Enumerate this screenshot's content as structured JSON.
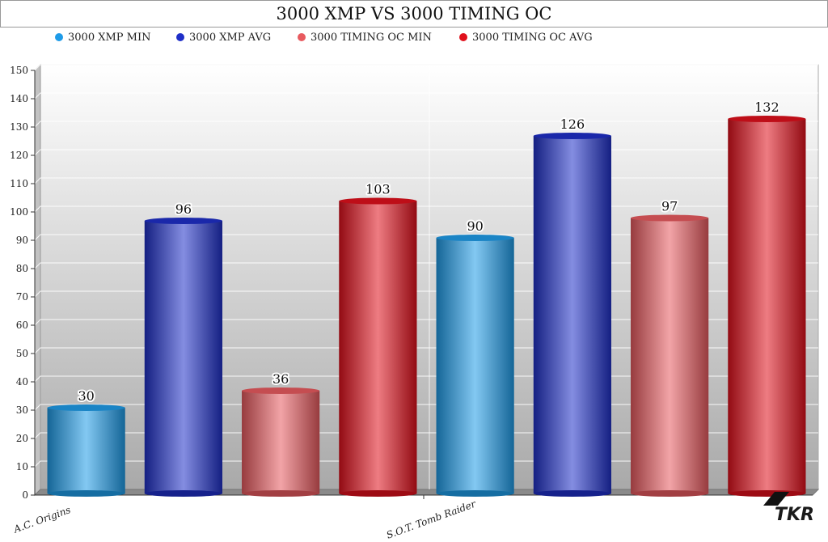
{
  "chart_data": {
    "type": "bar",
    "title": "3000 XMP VS 3000 TIMING OC",
    "categories": [
      "A.C. Origins",
      "S.O.T. Tomb Raider"
    ],
    "series": [
      {
        "name": "3000 XMP MIN",
        "values": [
          30,
          90
        ],
        "color": "#1e9be8"
      },
      {
        "name": "3000 XMP AVG",
        "values": [
          96,
          126
        ],
        "color": "#1f2fc8"
      },
      {
        "name": "3000 TIMING OC MIN",
        "values": [
          36,
          97
        ],
        "color": "#e85a5f"
      },
      {
        "name": "3000 TIMING OC AVG",
        "values": [
          103,
          132
        ],
        "color": "#e0101c"
      }
    ],
    "ylim": [
      0,
      150
    ],
    "yticks": [
      0,
      10,
      20,
      30,
      40,
      50,
      60,
      70,
      80,
      90,
      100,
      110,
      120,
      130,
      140,
      150
    ],
    "grid": true,
    "legend": "top-left"
  },
  "watermark": {
    "text": "TKR"
  }
}
